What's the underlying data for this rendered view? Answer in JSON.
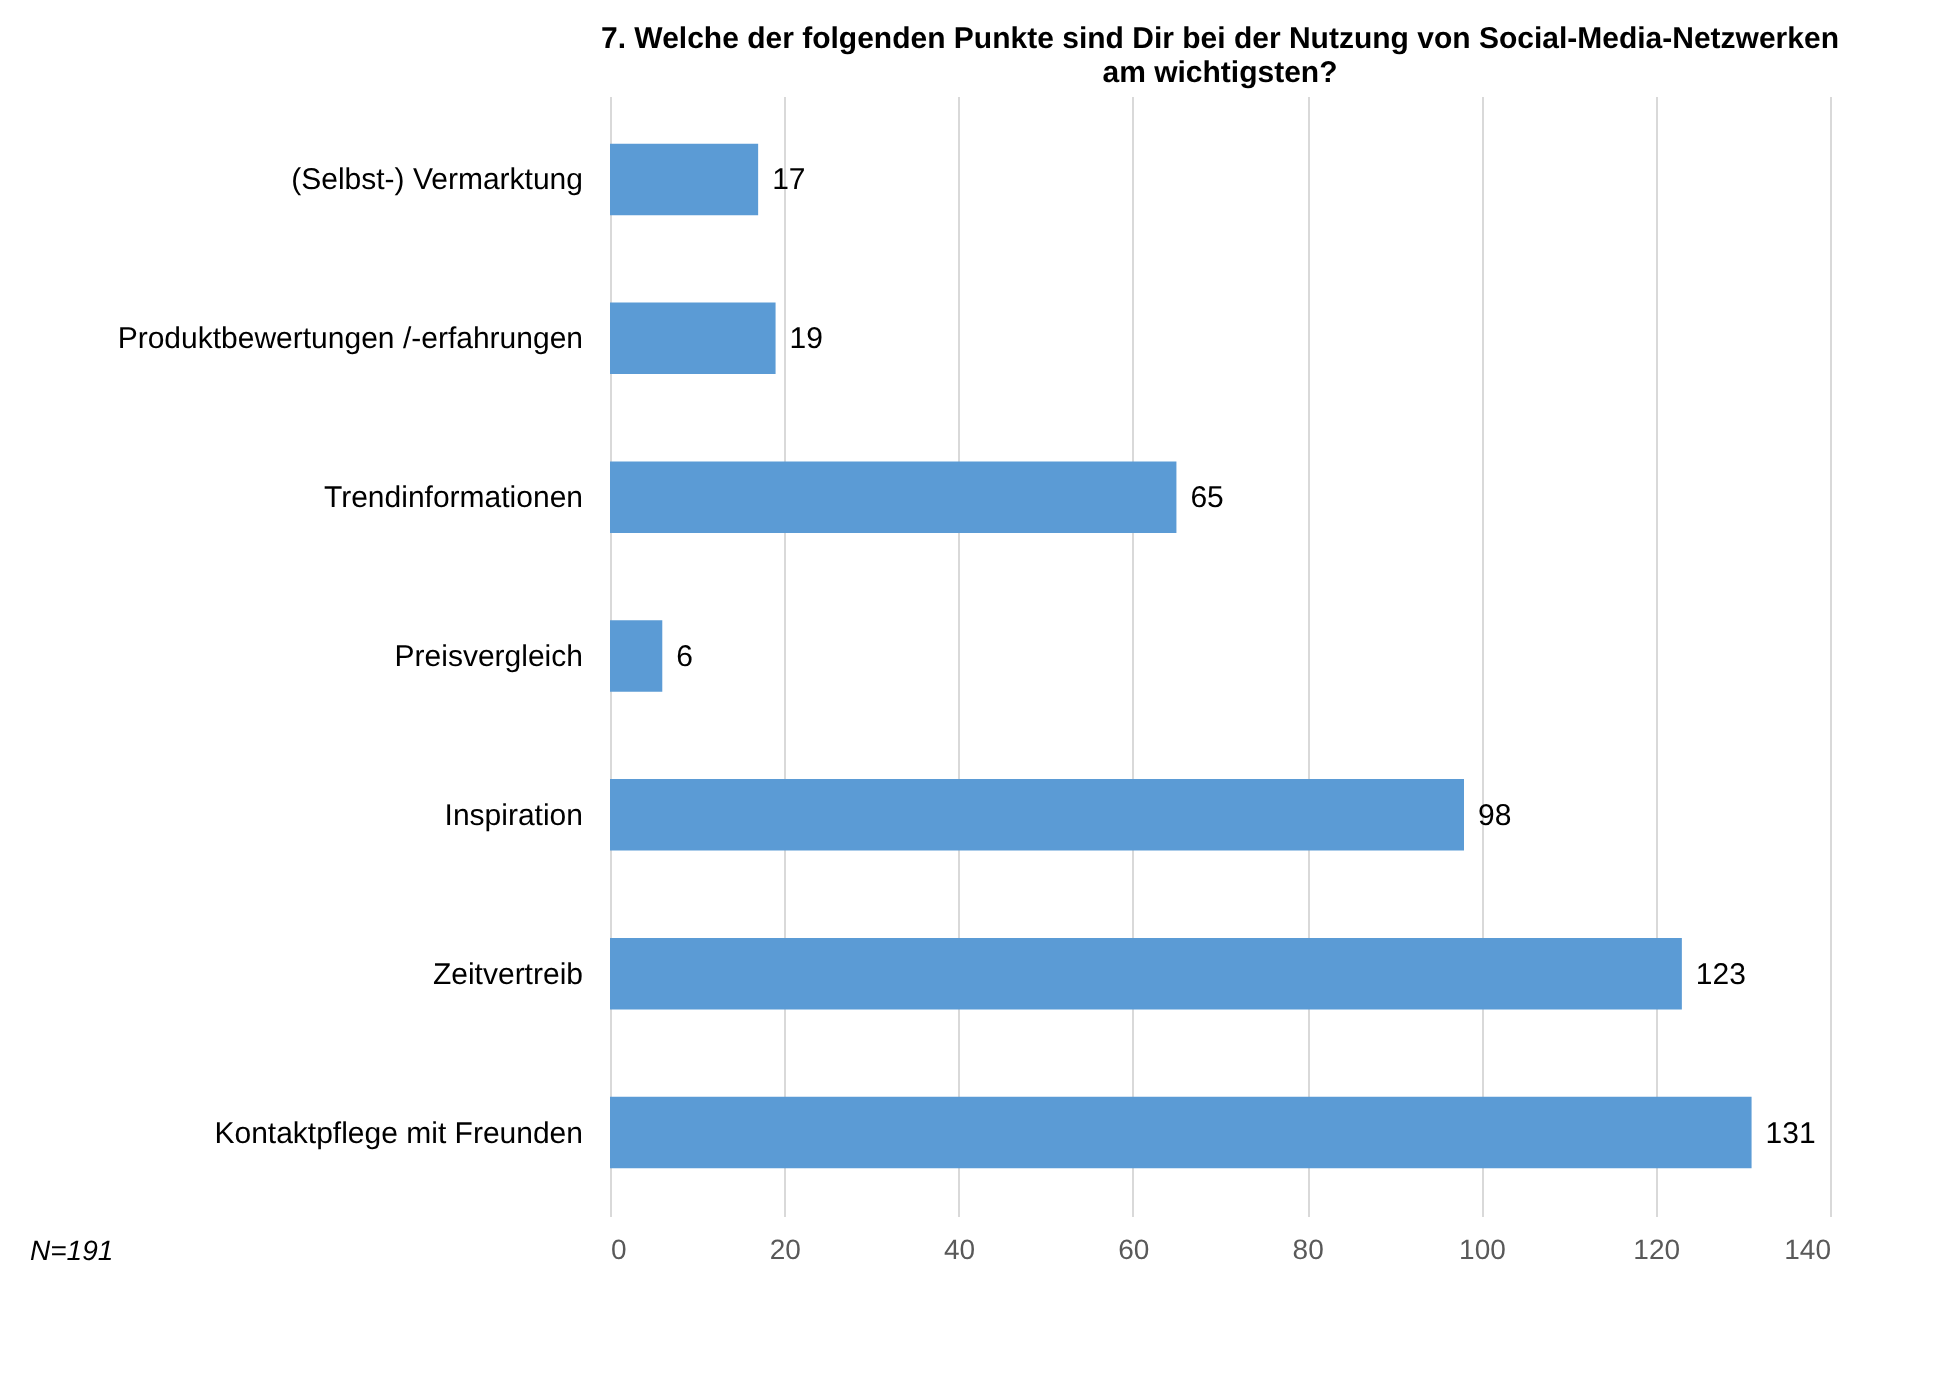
{
  "chart_data": {
    "type": "bar",
    "orientation": "horizontal",
    "title": "7. Welche der folgenden Punkte sind Dir bei der Nutzung von Social-Media-Netzwerken am wichtigsten?",
    "categories": [
      "(Selbst-) Vermarktung",
      "Produktbewertungen /-erfahrungen",
      "Trendinformationen",
      "Preisvergleich",
      "Inspiration",
      "Zeitvertreib",
      "Kontaktpflege mit Freunden"
    ],
    "values": [
      17,
      19,
      65,
      6,
      98,
      123,
      131
    ],
    "color": "#5b9bd5",
    "xlim": [
      0,
      140
    ],
    "xticks": [
      0,
      20,
      40,
      60,
      80,
      100,
      120,
      140
    ],
    "grid": "x",
    "data_labels": true,
    "annotations": [
      "N=191"
    ]
  }
}
